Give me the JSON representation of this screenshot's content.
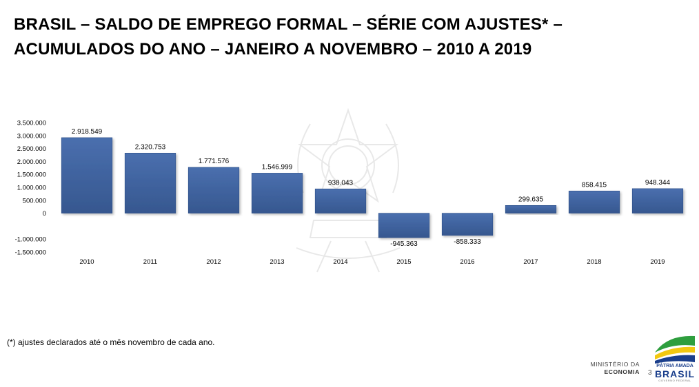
{
  "slide": {
    "title_line1": "BRASIL – SALDO DE EMPREGO FORMAL – SÉRIE COM AJUSTES* –",
    "title_line2": "ACUMULADOS DO ANO – JANEIRO A NOVEMBRO – 2010 A 2019",
    "footnote": "(*) ajustes declarados até o mês novembro de cada ano.",
    "ministry_line1": "MINISTÉRIO DA",
    "ministry_line2": "ECONOMIA",
    "page_number": "3",
    "logo_line1": "PÁTRIA AMADA",
    "logo_line2": "BRASIL",
    "logo_line3": "GOVERNO FEDERAL"
  },
  "colors": {
    "bar": "#3f63a0",
    "bar_edge": "#2f4f88",
    "text": "#000000",
    "logo_green": "#2e9e3e",
    "logo_yellow": "#f2c811",
    "logo_blue": "#1b3f8c"
  },
  "chart_data": {
    "type": "bar",
    "title": "",
    "xlabel": "",
    "ylabel": "",
    "grid": false,
    "legend": "none",
    "categories": [
      "2010",
      "2011",
      "2012",
      "2013",
      "2014",
      "2015",
      "2016",
      "2017",
      "2018",
      "2019"
    ],
    "values": [
      2918549,
      2320753,
      1771576,
      1546999,
      938043,
      -945363,
      -858333,
      299635,
      858415,
      948344
    ],
    "value_labels": [
      "2.918.549",
      "2.320.753",
      "1.771.576",
      "1.546.999",
      "938.043",
      "-945.363",
      "-858.333",
      "299.635",
      "858.415",
      "948.344"
    ],
    "ylim": [
      -1500000,
      3500000
    ],
    "yticks": [
      3500000,
      3000000,
      2500000,
      2000000,
      1500000,
      1000000,
      500000,
      0,
      -1000000,
      -1500000
    ],
    "ytick_labels": [
      "3.500.000",
      "3.000.000",
      "2.500.000",
      "2.000.000",
      "1.500.000",
      "1.000.000",
      "500.000",
      "0",
      "-1.000.000",
      "-1.500.000"
    ]
  }
}
